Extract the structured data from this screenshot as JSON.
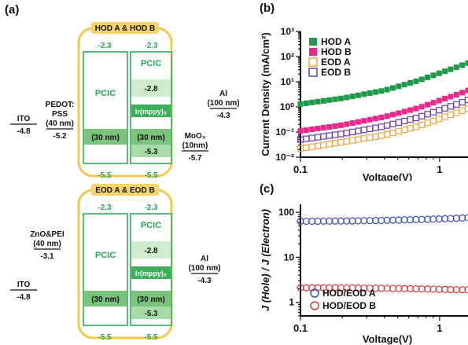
{
  "panels": {
    "a": "(a)",
    "b": "(b)",
    "c": "(c)"
  },
  "device_hod": {
    "badge": "HOD A & HOD B",
    "top_left": "-2.3",
    "top_right": "-2.3",
    "pcic_left": "PCIC",
    "pcic_right": "PCIC",
    "lumo_doped": "-2.8",
    "dopant_html": "Ir(mppy)₃",
    "thick_left": "(30 nm)",
    "thick_right": "(30 nm)",
    "homo_doped": "-5.3",
    "bot_left": "-5.5",
    "bot_right": "-5.5",
    "left_layers": [
      {
        "name": "ITO",
        "value": "-4.8"
      },
      {
        "name": "PEDOT:",
        "name2": "PSS",
        "thick": "(40 nm)",
        "value": "-5.2"
      }
    ],
    "right_layers": [
      {
        "name": "Al",
        "thick": "(100 nm)",
        "value": "-4.3"
      },
      {
        "name": "MoO₃",
        "thick": "(10nm)",
        "value": "-5.7"
      }
    ]
  },
  "device_eod": {
    "badge": "EOD A & EOD B",
    "top_left": "-2.3",
    "top_right": "-2.3",
    "pcic_left": "PCIC",
    "pcic_right": "PCIC",
    "lumo_doped": "-2.8",
    "dopant_html": "Ir(mppy)₃",
    "thick_left": "(30 nm)",
    "thick_right": "(30 nm)",
    "homo_doped": "-5.3",
    "bot_left": "-5.5",
    "bot_right": "-5.5",
    "left_layers": [
      {
        "name": "ZnO&PEI",
        "thick": "(40 nm)",
        "value": "-3.1"
      },
      {
        "name": "ITO",
        "value": "-4.8"
      }
    ],
    "right_layers": [
      {
        "name": "Al",
        "thick": "(100 nm)",
        "value": "-4.3"
      }
    ]
  },
  "chart_data": [
    {
      "type": "scatter",
      "xlabel": "Voltage(V)",
      "ylabel": "Current Density (mA/cm²)",
      "xscale": "log",
      "yscale": "log",
      "xlim": [
        0.1,
        1.6
      ],
      "ylim": [
        0.01,
        1000
      ],
      "xticks": [
        "0.1",
        "1"
      ],
      "yticks": [
        "10⁻²",
        "10⁻¹",
        "10⁰",
        "10¹",
        "10²",
        "10³"
      ],
      "legend_position": "top-left",
      "series": [
        {
          "name": "HOD A",
          "color": "#1f9a48",
          "marker": "filled-square",
          "x": [
            0.1,
            0.2,
            0.4,
            0.7,
            1.0,
            1.4,
            1.6
          ],
          "y": [
            1.3,
            2.2,
            4.5,
            11,
            22,
            42,
            55
          ]
        },
        {
          "name": "HOD B",
          "color": "#e6298a",
          "marker": "filled-square",
          "x": [
            0.1,
            0.2,
            0.4,
            0.7,
            1.0,
            1.4,
            1.6
          ],
          "y": [
            0.11,
            0.19,
            0.4,
            0.9,
            1.8,
            3.4,
            4.5
          ]
        },
        {
          "name": "EOD A",
          "color": "#f0a640",
          "marker": "open-square",
          "x": [
            0.1,
            0.2,
            0.4,
            0.7,
            1.0,
            1.4,
            1.6
          ],
          "y": [
            0.022,
            0.04,
            0.075,
            0.17,
            0.34,
            0.65,
            0.85
          ]
        },
        {
          "name": "EOD B",
          "color": "#6b3fa0",
          "marker": "open-square",
          "x": [
            0.1,
            0.2,
            0.4,
            0.7,
            1.0,
            1.4,
            1.6
          ],
          "y": [
            0.05,
            0.085,
            0.17,
            0.38,
            0.75,
            1.4,
            1.9
          ]
        }
      ]
    },
    {
      "type": "scatter",
      "xlabel": "Voltage(V)",
      "ylabel": "J (Hole) / J (Electron)",
      "xscale": "log",
      "yscale": "log",
      "xlim": [
        0.1,
        1.6
      ],
      "ylim": [
        0.5,
        150
      ],
      "xticks": [
        "0.1",
        "1"
      ],
      "yticks": [
        "1",
        "10",
        "100"
      ],
      "legend_position": "bottom-left",
      "series": [
        {
          "name": "HOD/EOD A",
          "color": "#3a4fb5",
          "marker": "open-circle",
          "x": [
            0.1,
            0.2,
            0.4,
            0.7,
            1.0,
            1.4,
            1.6
          ],
          "y": [
            63,
            64,
            66,
            69,
            71,
            74,
            76
          ]
        },
        {
          "name": "HOD/EOD B",
          "color": "#e23a3a",
          "marker": "open-circle",
          "x": [
            0.1,
            0.2,
            0.4,
            0.7,
            1.0,
            1.4,
            1.6
          ],
          "y": [
            2.1,
            2.1,
            2.05,
            2.0,
            1.95,
            1.9,
            1.9
          ]
        }
      ]
    }
  ]
}
